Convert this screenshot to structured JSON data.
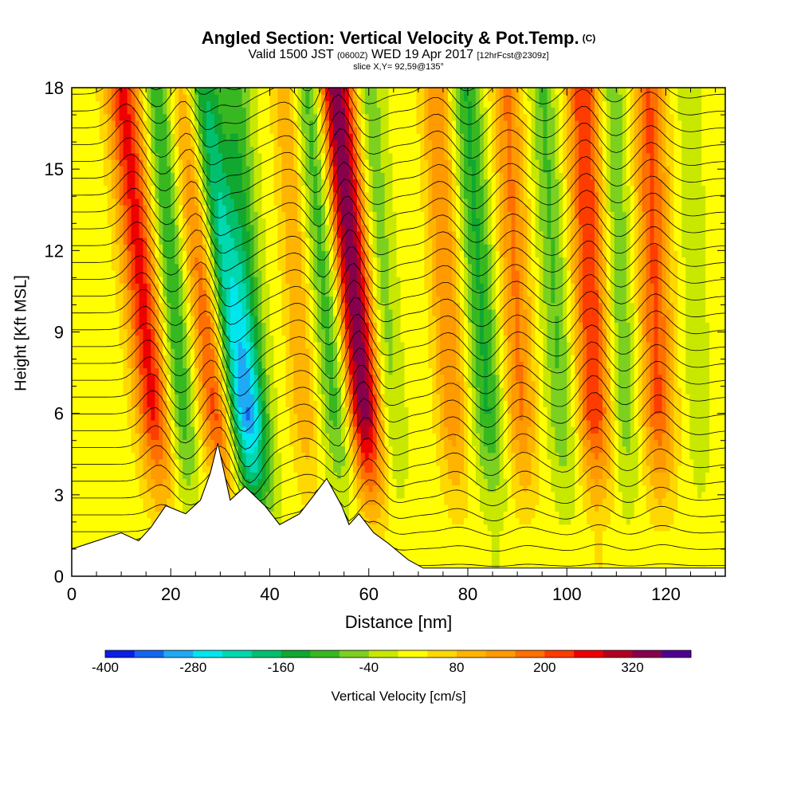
{
  "title": {
    "main": "Angled Section: Vertical Velocity & Pot.Temp.",
    "tag": "(C)",
    "valid_prefix": "Valid 1500 JST",
    "valid_z": "(0600Z)",
    "valid_date": "WED 19 Apr 2017",
    "fcst": "[12hrFcst@2309z]",
    "slice": "slice X,Y= 92,59@135°"
  },
  "chart_data": {
    "type": "heatmap",
    "xlabel": "Distance [nm]",
    "ylabel": "Height [Kft MSL]",
    "xlim": [
      0,
      132
    ],
    "ylim": [
      0,
      18
    ],
    "xticks": [
      0,
      20,
      40,
      60,
      80,
      100,
      120
    ],
    "yticks": [
      0,
      3,
      6,
      9,
      12,
      15,
      18
    ],
    "colorbar": {
      "label": "Vertical Velocity [cm/s]",
      "min": -400,
      "max": 400,
      "step": 40,
      "tick_labels": [
        "-400",
        "-280",
        "-160",
        "-40",
        "80",
        "200",
        "320"
      ],
      "colors": [
        "#0a1ee6",
        "#1466f0",
        "#1eaaf5",
        "#00e6ee",
        "#00d8b0",
        "#00c070",
        "#10a830",
        "#38b820",
        "#7cd020",
        "#c8e800",
        "#ffff00",
        "#ffd800",
        "#ffb400",
        "#ff9a00",
        "#ff7000",
        "#ff3c00",
        "#ee0000",
        "#b40020",
        "#86004c",
        "#4e0090"
      ]
    },
    "terrain_kft": [
      [
        0,
        1.0
      ],
      [
        10,
        1.6
      ],
      [
        13.5,
        1.3
      ],
      [
        16,
        1.8
      ],
      [
        19,
        2.6
      ],
      [
        23,
        2.3
      ],
      [
        26,
        2.8
      ],
      [
        28,
        3.8
      ],
      [
        29.5,
        4.9
      ],
      [
        32,
        2.8
      ],
      [
        35,
        3.3
      ],
      [
        39,
        2.6
      ],
      [
        42,
        1.9
      ],
      [
        46,
        2.3
      ],
      [
        49,
        3.0
      ],
      [
        51.5,
        3.6
      ],
      [
        54.5,
        2.6
      ],
      [
        56,
        1.9
      ],
      [
        58,
        2.3
      ],
      [
        61,
        1.6
      ],
      [
        64,
        1.2
      ],
      [
        68,
        0.6
      ],
      [
        71,
        0.3
      ],
      [
        132,
        0.3
      ]
    ],
    "vertical_velocity_features": [
      {
        "center_nm": 15,
        "peak_cms": 240,
        "tilt": 1.3
      },
      {
        "center_nm": 21,
        "peak_cms": -140,
        "tilt": 1.0
      },
      {
        "center_nm": 28,
        "peak_cms": 250,
        "tilt": 1.3
      },
      {
        "center_nm": 32,
        "peak_cms": -300,
        "tilt": 1.8
      },
      {
        "center_nm": 36,
        "peak_cms": -120,
        "tilt": 0.8
      },
      {
        "center_nm": 46,
        "peak_cms": 100,
        "tilt": 0.8
      },
      {
        "center_nm": 53,
        "peak_cms": -220,
        "tilt": 1.2
      },
      {
        "center_nm": 57,
        "peak_cms": 380,
        "tilt": 1.2
      },
      {
        "center_nm": 63,
        "peak_cms": -100,
        "tilt": 0.9
      },
      {
        "center_nm": 76,
        "peak_cms": 140,
        "tilt": 0.7
      },
      {
        "center_nm": 83,
        "peak_cms": -140,
        "tilt": 0.9
      },
      {
        "center_nm": 90,
        "peak_cms": 150,
        "tilt": 0.6
      },
      {
        "center_nm": 98,
        "peak_cms": -100,
        "tilt": 0.8
      },
      {
        "center_nm": 105,
        "peak_cms": 220,
        "tilt": 0.5
      },
      {
        "center_nm": 111,
        "peak_cms": -90,
        "tilt": 0.5
      },
      {
        "center_nm": 118,
        "peak_cms": 190,
        "tilt": 0.4
      },
      {
        "center_nm": 126,
        "peak_cms": -40,
        "tilt": 0.4
      }
    ],
    "pot_temp_contour_interval": 1
  }
}
